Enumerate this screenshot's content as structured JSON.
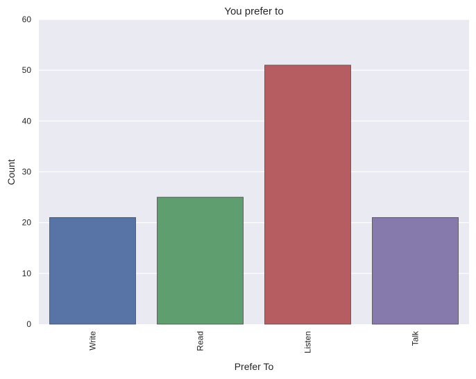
{
  "chart_data": {
    "type": "bar",
    "title": "You prefer to",
    "xlabel": "Prefer To",
    "ylabel": "Count",
    "categories": [
      "Write",
      "Read",
      "Listen",
      "Talk"
    ],
    "values": [
      21,
      25,
      51,
      21
    ],
    "colors": [
      "#5873a6",
      "#5f9e6e",
      "#b55d60",
      "#857aab"
    ],
    "ylim": [
      0,
      60
    ],
    "yticks": [
      "0",
      "10",
      "20",
      "30",
      "40",
      "50",
      "60"
    ],
    "grid": true,
    "background": "#eaeaf2"
  }
}
